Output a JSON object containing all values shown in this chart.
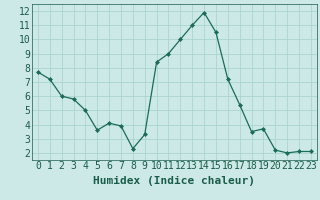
{
  "x": [
    0,
    1,
    2,
    3,
    4,
    5,
    6,
    7,
    8,
    9,
    10,
    11,
    12,
    13,
    14,
    15,
    16,
    17,
    18,
    19,
    20,
    21,
    22,
    23
  ],
  "y": [
    7.7,
    7.2,
    6.0,
    5.8,
    5.0,
    3.6,
    4.1,
    3.9,
    2.3,
    3.3,
    8.4,
    9.0,
    10.0,
    11.0,
    11.9,
    10.5,
    7.2,
    5.4,
    3.5,
    3.7,
    2.2,
    2.0,
    2.1,
    2.1
  ],
  "xlabel": "Humidex (Indice chaleur)",
  "bg_color": "#cce9e7",
  "grid_color": "#aad4d0",
  "line_color": "#1a6b5a",
  "marker_color": "#1a6b5a",
  "xlim": [
    -0.5,
    23.5
  ],
  "ylim": [
    1.5,
    12.5
  ],
  "yticks": [
    2,
    3,
    4,
    5,
    6,
    7,
    8,
    9,
    10,
    11,
    12
  ],
  "xticks": [
    0,
    1,
    2,
    3,
    4,
    5,
    6,
    7,
    8,
    9,
    10,
    11,
    12,
    13,
    14,
    15,
    16,
    17,
    18,
    19,
    20,
    21,
    22,
    23
  ],
  "xlabel_fontsize": 8,
  "tick_fontsize": 7,
  "text_color": "#1a5c4a"
}
